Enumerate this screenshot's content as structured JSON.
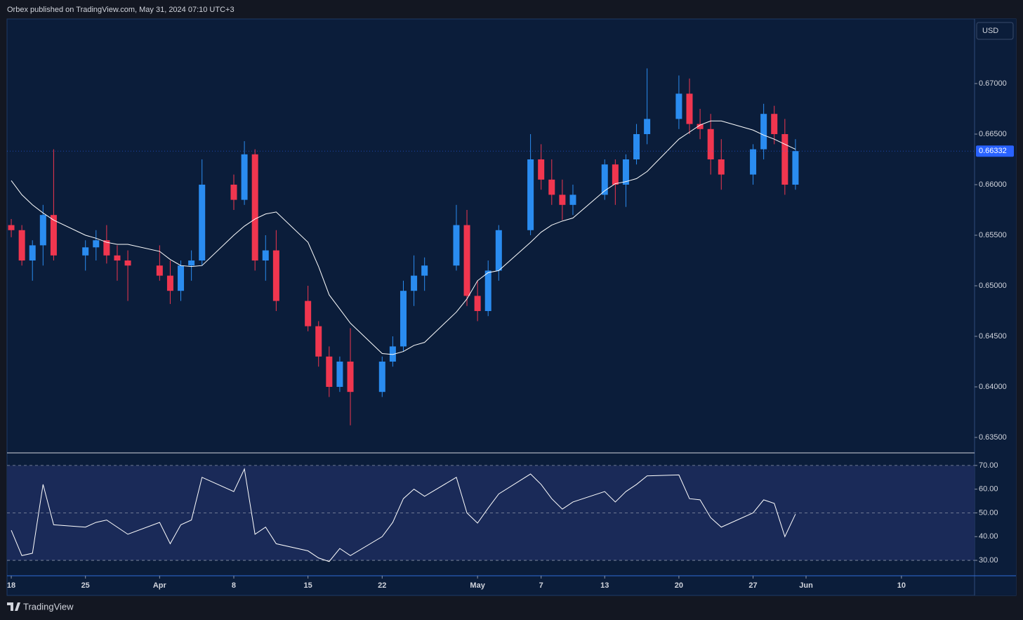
{
  "header": {
    "publisher": "Orbex published on TradingView.com, May 31, 2024 07:10 UTC+3"
  },
  "footer": {
    "brand": "TradingView"
  },
  "chart_data": [
    {
      "type": "candlestick",
      "currency": "USD",
      "last_price": 0.66332,
      "up_color": "#2a8cf0",
      "down_color": "#f0364f",
      "x": [
        0,
        1,
        2,
        3,
        4,
        7,
        8,
        9,
        10,
        11,
        14,
        15,
        16,
        17,
        18,
        21,
        22,
        23,
        24,
        25,
        28,
        29,
        30,
        31,
        32,
        35,
        36,
        37,
        38,
        39,
        42,
        43,
        44,
        45,
        46,
        49,
        50,
        51,
        52,
        53,
        56,
        57,
        58,
        59,
        60,
        63,
        64,
        65,
        66,
        67,
        70,
        71,
        72,
        73,
        74
      ],
      "open": [
        0.656,
        0.6555,
        0.6525,
        0.654,
        0.657,
        0.653,
        0.6538,
        0.6545,
        0.653,
        0.6525,
        0.652,
        0.651,
        0.6495,
        0.652,
        0.6525,
        0.66,
        0.6585,
        0.663,
        0.6525,
        0.6535,
        0.6485,
        0.646,
        0.643,
        0.64,
        0.6425,
        0.6395,
        0.6425,
        0.644,
        0.6495,
        0.651,
        0.652,
        0.656,
        0.649,
        0.6475,
        0.6515,
        0.6555,
        0.6625,
        0.6605,
        0.659,
        0.658,
        0.659,
        0.662,
        0.66,
        0.6625,
        0.665,
        0.6665,
        0.669,
        0.666,
        0.6655,
        0.6625,
        0.661,
        0.6635,
        0.667,
        0.665,
        0.66
      ],
      "high": [
        0.6566,
        0.656,
        0.6545,
        0.658,
        0.6635,
        0.6545,
        0.6555,
        0.656,
        0.654,
        0.6535,
        0.654,
        0.6525,
        0.6525,
        0.6535,
        0.6625,
        0.661,
        0.6643,
        0.6635,
        0.655,
        0.6555,
        0.65,
        0.6465,
        0.644,
        0.643,
        0.6458,
        0.643,
        0.645,
        0.6505,
        0.653,
        0.6528,
        0.658,
        0.6575,
        0.6505,
        0.6525,
        0.656,
        0.665,
        0.664,
        0.6625,
        0.6605,
        0.66,
        0.6625,
        0.6625,
        0.663,
        0.666,
        0.6715,
        0.6708,
        0.6705,
        0.6675,
        0.667,
        0.6645,
        0.664,
        0.668,
        0.6678,
        0.6665,
        0.6645
      ],
      "low": [
        0.6548,
        0.652,
        0.6505,
        0.652,
        0.6525,
        0.6515,
        0.6525,
        0.6522,
        0.6505,
        0.6485,
        0.6505,
        0.6482,
        0.6485,
        0.6505,
        0.652,
        0.6575,
        0.658,
        0.6515,
        0.6505,
        0.6475,
        0.6455,
        0.642,
        0.639,
        0.6395,
        0.6362,
        0.639,
        0.642,
        0.6435,
        0.648,
        0.6495,
        0.6515,
        0.648,
        0.6465,
        0.647,
        0.6505,
        0.655,
        0.6595,
        0.658,
        0.6565,
        0.657,
        0.6585,
        0.658,
        0.6578,
        0.662,
        0.664,
        0.6655,
        0.665,
        0.6645,
        0.661,
        0.6595,
        0.66,
        0.6625,
        0.664,
        0.659,
        0.6595
      ],
      "close": [
        0.6555,
        0.6525,
        0.654,
        0.657,
        0.653,
        0.6538,
        0.6545,
        0.653,
        0.6525,
        0.652,
        0.651,
        0.6495,
        0.652,
        0.6525,
        0.66,
        0.6585,
        0.663,
        0.6525,
        0.6535,
        0.6485,
        0.646,
        0.643,
        0.64,
        0.6425,
        0.6395,
        0.6425,
        0.644,
        0.6495,
        0.651,
        0.652,
        0.656,
        0.649,
        0.6475,
        0.6515,
        0.6555,
        0.6625,
        0.6605,
        0.659,
        0.658,
        0.659,
        0.662,
        0.66,
        0.6625,
        0.665,
        0.6665,
        0.669,
        0.666,
        0.6655,
        0.6625,
        0.661,
        0.6635,
        0.667,
        0.665,
        0.66,
        0.66332
      ],
      "ma": {
        "color": "#ffffff",
        "values": [
          0.6604,
          0.659,
          0.658,
          0.6572,
          0.6565,
          0.655,
          0.6547,
          0.6543,
          0.6541,
          0.6541,
          0.6534,
          0.6526,
          0.652,
          0.6519,
          0.652,
          0.655,
          0.6559,
          0.6566,
          0.6571,
          0.6573,
          0.6543,
          0.6519,
          0.6491,
          0.6477,
          0.6463,
          0.6433,
          0.6432,
          0.6435,
          0.6441,
          0.6444,
          0.6474,
          0.6487,
          0.6505,
          0.6513,
          0.6515,
          0.6543,
          0.6553,
          0.656,
          0.6564,
          0.6567,
          0.6594,
          0.6601,
          0.6603,
          0.6606,
          0.6613,
          0.6645,
          0.6652,
          0.6659,
          0.6663,
          0.6663,
          0.6654,
          0.6649,
          0.6645,
          0.664,
          0.6635
        ]
      },
      "xlim": [
        -0.4,
        90.9
      ],
      "ylim": [
        0.63354,
        0.67632
      ],
      "yticks": [
        {
          "value": 0.635,
          "label": "0.63500"
        },
        {
          "value": 0.64,
          "label": "0.64000"
        },
        {
          "value": 0.645,
          "label": "0.64500"
        },
        {
          "value": 0.65,
          "label": "0.65000"
        },
        {
          "value": 0.655,
          "label": "0.65500"
        },
        {
          "value": 0.66,
          "label": "0.66000"
        },
        {
          "value": 0.665,
          "label": "0.66500"
        },
        {
          "value": 0.67,
          "label": "0.67000"
        }
      ]
    },
    {
      "type": "line",
      "color": "#ffffff",
      "band": [
        30,
        70
      ],
      "x": [
        0,
        1,
        2,
        3,
        4,
        7,
        8,
        9,
        10,
        11,
        14,
        15,
        16,
        17,
        18,
        21,
        22,
        23,
        24,
        25,
        28,
        29,
        30,
        31,
        32,
        35,
        36,
        37,
        38,
        39,
        42,
        43,
        44,
        45,
        46,
        49,
        50,
        51,
        52,
        53,
        56,
        57,
        58,
        59,
        60,
        63,
        64,
        65,
        66,
        67,
        70,
        71,
        72,
        73,
        74
      ],
      "values": [
        42.7,
        32,
        33,
        62,
        45,
        44,
        46,
        47,
        44,
        41,
        46,
        37,
        45,
        47,
        65,
        59,
        68.5,
        41,
        44,
        37,
        34,
        31,
        29.5,
        35,
        32,
        40,
        46,
        56,
        60,
        57,
        65,
        50,
        45.7,
        52,
        58,
        66.4,
        62,
        56,
        51.6,
        54.6,
        59,
        54.6,
        59,
        62,
        65.6,
        66,
        56,
        55.5,
        48,
        44,
        50,
        55.5,
        54,
        40,
        49.5
      ],
      "xlim": [
        -0.4,
        90.9
      ],
      "ylim": [
        23.5,
        75.0
      ],
      "yticks": [
        {
          "value": 30,
          "label": "30.00"
        },
        {
          "value": 40,
          "label": "40.00"
        },
        {
          "value": 50,
          "label": "50.00"
        },
        {
          "value": 60,
          "label": "60.00"
        },
        {
          "value": 70,
          "label": "70.00"
        }
      ],
      "xticks": [
        {
          "value": 0,
          "label": "18"
        },
        {
          "value": 7,
          "label": "25"
        },
        {
          "value": 14,
          "label": "Apr"
        },
        {
          "value": 21,
          "label": "8"
        },
        {
          "value": 28,
          "label": "15"
        },
        {
          "value": 35,
          "label": "22"
        },
        {
          "value": 44,
          "label": "May"
        },
        {
          "value": 50,
          "label": "7"
        },
        {
          "value": 56,
          "label": "13"
        },
        {
          "value": 63,
          "label": "20"
        },
        {
          "value": 70,
          "label": "27"
        },
        {
          "value": 75,
          "label": "Jun"
        },
        {
          "value": 84,
          "label": "10"
        }
      ]
    }
  ]
}
